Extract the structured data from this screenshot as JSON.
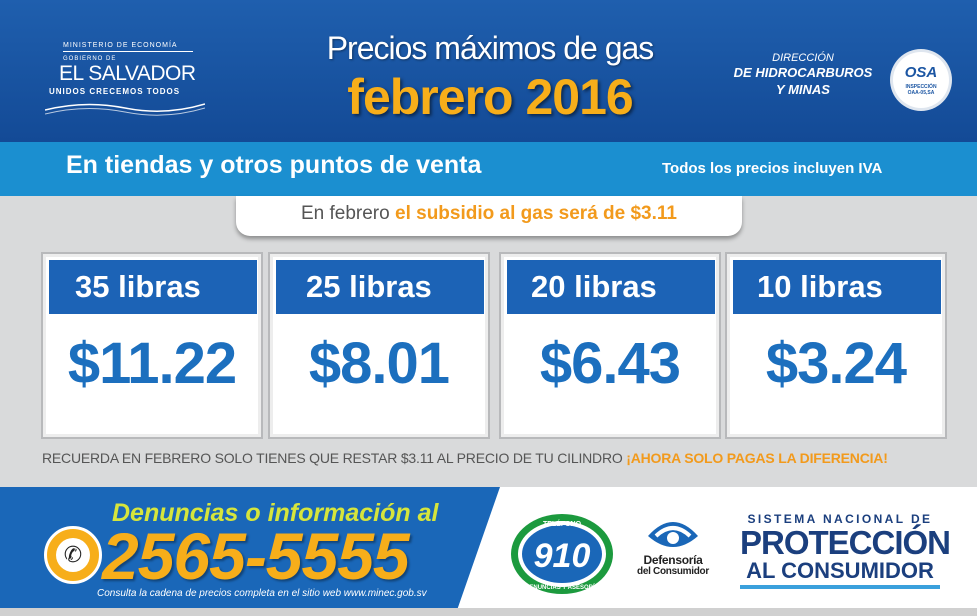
{
  "header": {
    "logo": {
      "ministry": "MINISTERIO DE ECONOMÍA",
      "gobierno": "GOBIERNO DE",
      "country": "EL SALVADOR",
      "tagline": "UNIDOS CRECEMOS TODOS"
    },
    "title_line1": "Precios máximos de gas",
    "title_line2": "febrero 2016",
    "direccion": {
      "line1": "DIRECCIÓN",
      "line2": "DE HIDROCARBUROS",
      "line3": "Y MINAS"
    },
    "badge": {
      "name": "OSA",
      "line1": "INSPECCIÓN",
      "line2": "OAA-05,SA"
    }
  },
  "band": {
    "left": "En tiendas y otros puntos de venta",
    "right": "Todos los precios incluyen IVA"
  },
  "subsidy": {
    "prefix": "En febrero",
    "highlight": "el subsidio al gas será de $3.11"
  },
  "prices": [
    {
      "size": "35 libras",
      "price": "$11.22"
    },
    {
      "size": "25 libras",
      "price": "$8.01"
    },
    {
      "size": "20 libras",
      "price": "$6.43"
    },
    {
      "size": "10 libras",
      "price": "$3.24"
    }
  ],
  "reminder": {
    "text": "RECUERDA EN FEBRERO SOLO TIENES QUE RESTAR $3.11 AL PRECIO DE TU CILINDRO",
    "highlight": "¡AHORA SOLO PAGAS LA DIFERENCIA!"
  },
  "contact": {
    "heading": "Denuncias o información al",
    "phone": "2565-5555",
    "note": "Consulta la cadena de precios completa en el sitio web www.minec.gob.sv"
  },
  "logos": {
    "t910": {
      "top": "TELÉFONO",
      "number": "910",
      "arc": "DENUNCIAS Y ASESORÍA"
    },
    "defensoria": {
      "line1": "Defensoría",
      "line2": "del Consumidor"
    },
    "sistema": {
      "line1": "SISTEMA NACIONAL DE",
      "line2": "PROTECCIÓN",
      "line3": "AL CONSUMIDOR"
    }
  },
  "colors": {
    "header_blue": "#1a58a8",
    "band_blue": "#1b8fd0",
    "card_label_blue": "#1c63b6",
    "price_blue": "#1c6fbe",
    "accent_orange": "#f7ae1a",
    "denuncias_yellow": "#d6e53c"
  }
}
